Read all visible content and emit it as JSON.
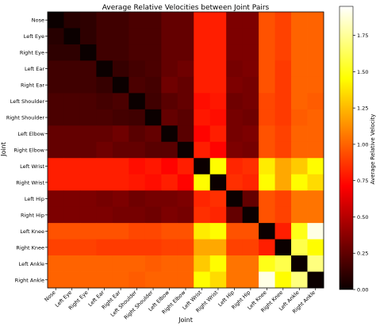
{
  "chart_data": {
    "type": "heatmap",
    "title": "Average Relative Velocities between Joint Pairs",
    "xlabel": "Joint",
    "ylabel": "Joint",
    "colorbar_label": "Average Relative Velocity",
    "colormap": "hot",
    "value_range": [
      0,
      1.95
    ],
    "colorbar_ticks": [
      "0.00",
      "0.25",
      "0.50",
      "0.75",
      "1.00",
      "1.25",
      "1.50",
      "1.75"
    ],
    "joints": [
      "Nose",
      "Left Eye",
      "Right Eye",
      "Left Ear",
      "Right Ear",
      "Left Shoulder",
      "Right Shoulder",
      "Left Elbow",
      "Right Elbow",
      "Left Wrist",
      "Right Wrist",
      "Left Hip",
      "Right Hip",
      "Left Knee",
      "Right Knee",
      "Left Ankle",
      "Right Ankle"
    ],
    "values": [
      [
        0.0,
        0.08,
        0.1,
        0.15,
        0.15,
        0.18,
        0.18,
        0.25,
        0.25,
        0.8,
        0.8,
        0.32,
        0.32,
        0.95,
        0.9,
        1.0,
        1.0
      ],
      [
        0.08,
        0.0,
        0.1,
        0.15,
        0.15,
        0.18,
        0.18,
        0.25,
        0.25,
        0.8,
        0.8,
        0.32,
        0.32,
        0.95,
        0.9,
        1.0,
        1.0
      ],
      [
        0.1,
        0.1,
        0.0,
        0.15,
        0.15,
        0.18,
        0.18,
        0.25,
        0.25,
        0.8,
        0.8,
        0.32,
        0.32,
        0.95,
        0.9,
        1.0,
        1.0
      ],
      [
        0.15,
        0.15,
        0.15,
        0.0,
        0.12,
        0.16,
        0.18,
        0.25,
        0.28,
        0.8,
        0.8,
        0.3,
        0.32,
        0.95,
        0.88,
        1.0,
        1.0
      ],
      [
        0.15,
        0.15,
        0.15,
        0.12,
        0.0,
        0.18,
        0.16,
        0.28,
        0.25,
        0.8,
        0.8,
        0.32,
        0.3,
        0.95,
        0.88,
        1.0,
        1.0
      ],
      [
        0.18,
        0.18,
        0.18,
        0.16,
        0.18,
        0.0,
        0.15,
        0.22,
        0.25,
        0.75,
        0.78,
        0.28,
        0.3,
        0.92,
        0.88,
        1.0,
        0.98
      ],
      [
        0.18,
        0.18,
        0.18,
        0.18,
        0.16,
        0.15,
        0.0,
        0.25,
        0.22,
        0.78,
        0.75,
        0.3,
        0.28,
        0.92,
        0.88,
        0.98,
        1.0
      ],
      [
        0.25,
        0.25,
        0.25,
        0.25,
        0.28,
        0.22,
        0.25,
        0.0,
        0.22,
        0.72,
        0.8,
        0.3,
        0.32,
        0.95,
        0.9,
        1.0,
        1.0
      ],
      [
        0.25,
        0.25,
        0.25,
        0.28,
        0.25,
        0.25,
        0.22,
        0.22,
        0.0,
        0.8,
        0.72,
        0.32,
        0.3,
        0.95,
        0.9,
        1.0,
        1.0
      ],
      [
        0.8,
        0.8,
        0.8,
        0.8,
        0.8,
        0.75,
        0.78,
        0.72,
        0.8,
        0.0,
        1.45,
        0.82,
        0.85,
        1.4,
        1.2,
        1.3,
        1.45
      ],
      [
        0.8,
        0.8,
        0.8,
        0.8,
        0.8,
        0.78,
        0.75,
        0.8,
        0.72,
        1.45,
        0.0,
        0.85,
        0.82,
        1.45,
        1.2,
        1.45,
        1.35
      ],
      [
        0.32,
        0.32,
        0.32,
        0.3,
        0.32,
        0.28,
        0.3,
        0.3,
        0.32,
        0.82,
        0.85,
        0.0,
        0.25,
        0.95,
        0.9,
        1.05,
        1.05
      ],
      [
        0.32,
        0.32,
        0.32,
        0.32,
        0.3,
        0.3,
        0.28,
        0.32,
        0.3,
        0.85,
        0.82,
        0.25,
        0.0,
        0.95,
        0.9,
        1.05,
        1.05
      ],
      [
        0.95,
        0.95,
        0.95,
        0.95,
        0.95,
        0.92,
        0.92,
        0.95,
        0.95,
        1.4,
        1.45,
        0.95,
        0.95,
        0.0,
        0.8,
        1.5,
        1.9
      ],
      [
        0.9,
        0.9,
        0.9,
        0.88,
        0.88,
        0.88,
        0.88,
        0.9,
        0.9,
        1.2,
        1.2,
        0.9,
        0.9,
        0.8,
        0.0,
        1.6,
        1.45
      ],
      [
        1.0,
        1.0,
        1.0,
        1.0,
        1.0,
        1.0,
        0.98,
        1.0,
        1.0,
        1.3,
        1.45,
        1.05,
        1.05,
        1.5,
        1.6,
        0.0,
        1.7
      ],
      [
        1.0,
        1.0,
        1.0,
        1.0,
        1.0,
        0.98,
        1.0,
        1.0,
        1.0,
        1.45,
        1.35,
        1.05,
        1.05,
        1.9,
        1.45,
        1.7,
        0.0
      ]
    ]
  }
}
